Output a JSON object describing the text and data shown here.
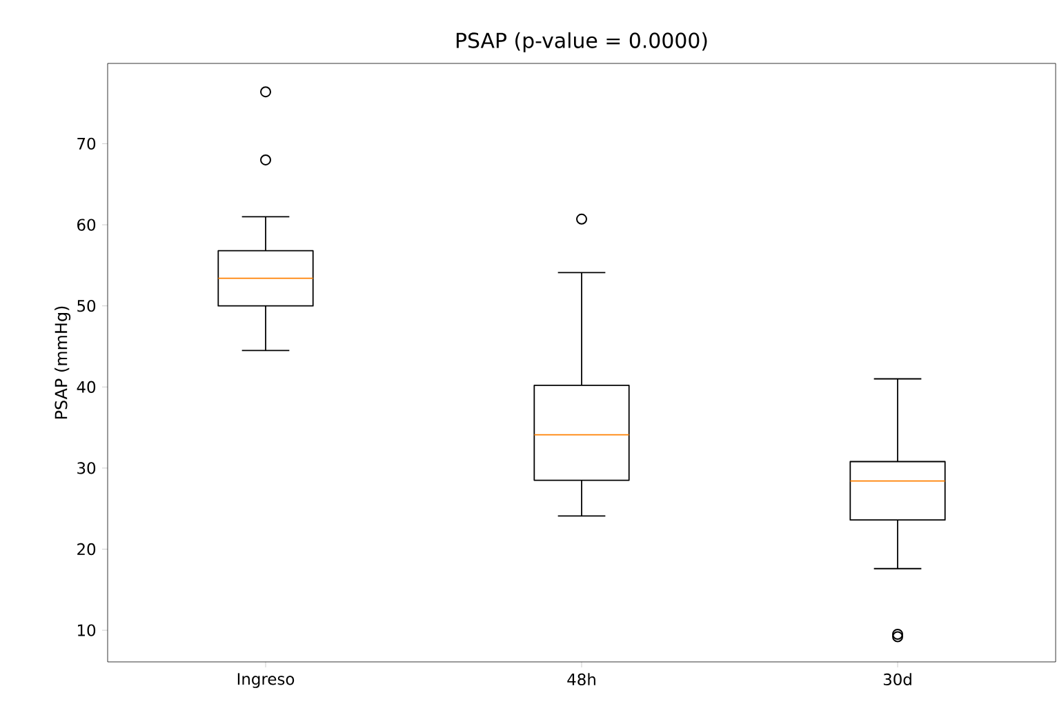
{
  "chart_data": {
    "type": "box",
    "title": "PSAP (p-value = 0.0000)",
    "ylabel": "PSAP (mmHg)",
    "categories": [
      "Ingreso",
      "48h",
      "30d"
    ],
    "boxes": [
      {
        "low": 44.5,
        "q1": 50.0,
        "median": 53.4,
        "q3": 56.8,
        "high": 61.0,
        "outliers": [
          76.4,
          68.0
        ]
      },
      {
        "low": 24.1,
        "q1": 28.5,
        "median": 34.1,
        "q3": 40.2,
        "high": 54.1,
        "outliers": [
          60.7
        ]
      },
      {
        "low": 17.6,
        "q1": 23.6,
        "median": 28.4,
        "q3": 30.8,
        "high": 41.0,
        "outliers": [
          9.2,
          9.5
        ]
      }
    ],
    "ylim": [
      6.1,
      79.9
    ],
    "yticks": [
      10,
      20,
      30,
      40,
      50,
      60,
      70
    ],
    "grid": false,
    "marker": "circle"
  }
}
